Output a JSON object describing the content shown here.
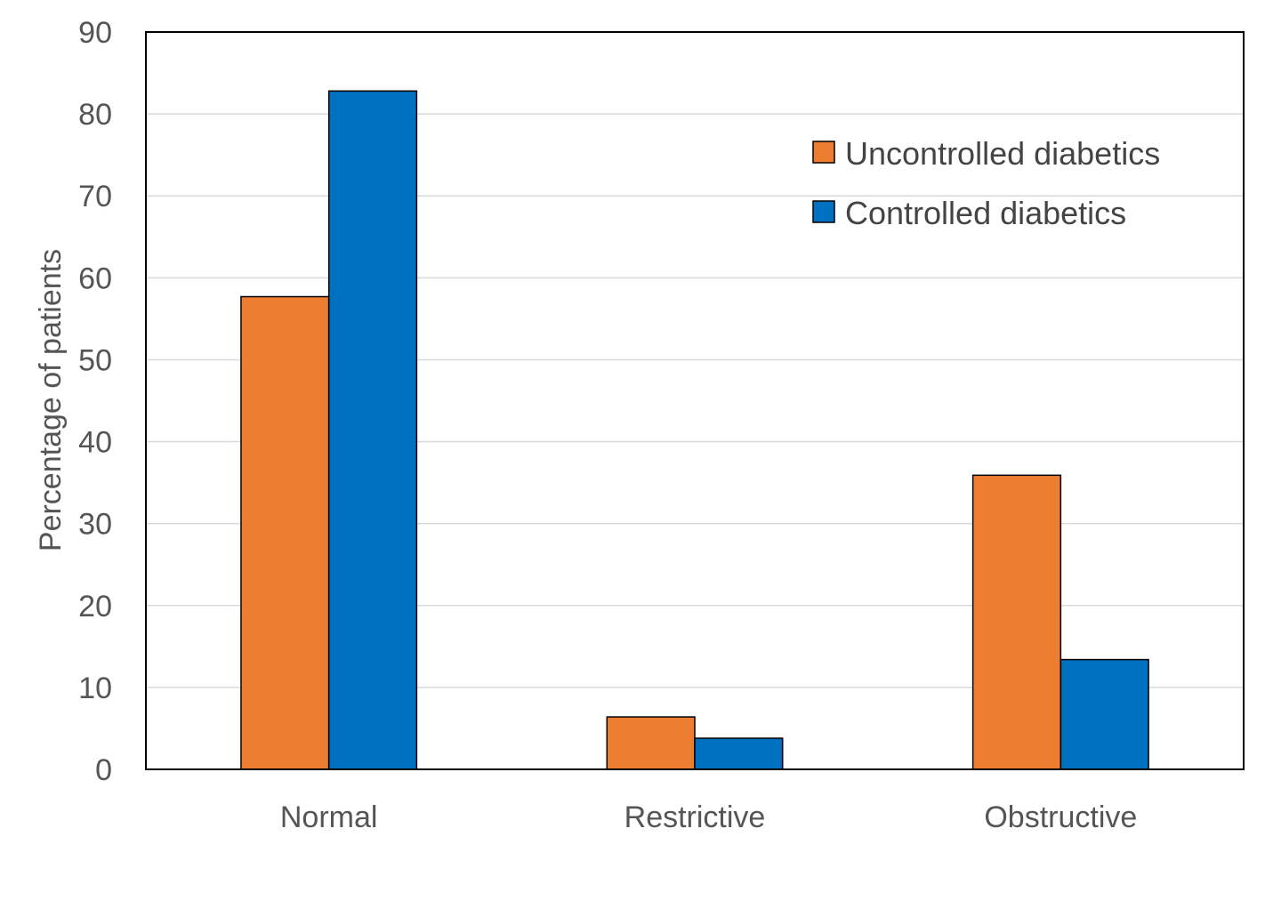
{
  "chart_data": {
    "type": "bar",
    "title": "",
    "xlabel": "",
    "ylabel": "Percentage of patients",
    "categories": [
      "Normal",
      "Restrictive",
      "Obstructive"
    ],
    "series": [
      {
        "name": "Uncontrolled diabetics",
        "values": [
          57.7,
          6.4,
          35.9
        ],
        "color": "#ED7D31"
      },
      {
        "name": "Controlled diabetics",
        "values": [
          82.8,
          3.8,
          13.4
        ],
        "color": "#0070C0"
      }
    ],
    "ylim": [
      0,
      90
    ],
    "yticks": [
      0,
      10,
      20,
      30,
      40,
      50,
      60,
      70,
      80,
      90
    ],
    "grid": true,
    "legend_position": "top-right"
  }
}
